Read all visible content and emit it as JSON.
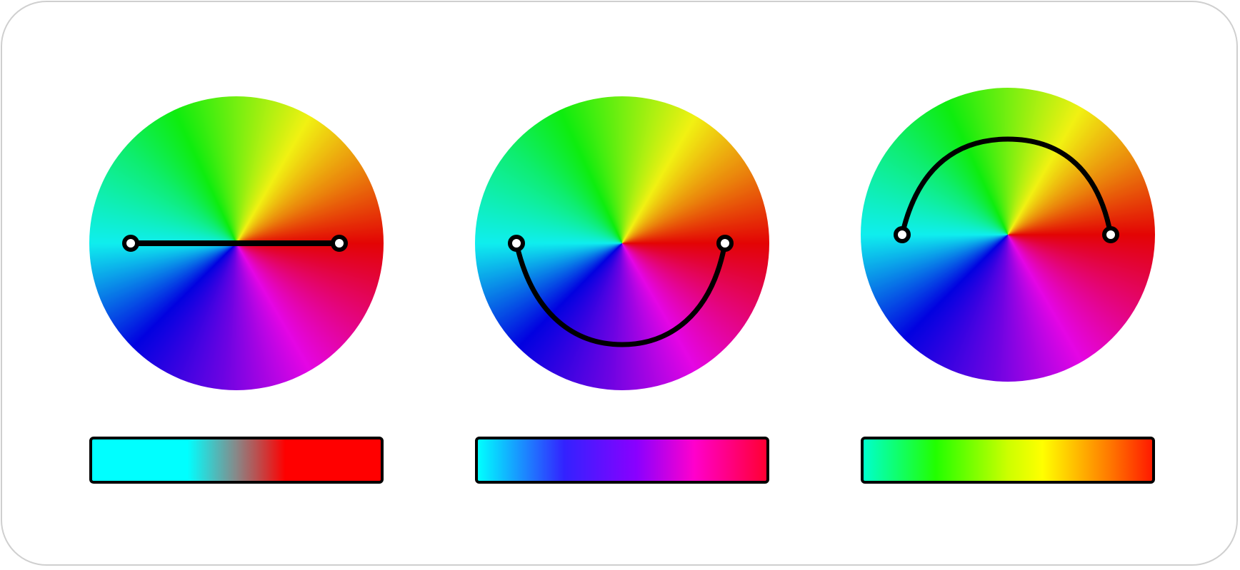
{
  "colors": {
    "path_stroke": "#000000",
    "handle_fill": "#ffffff",
    "frame_border": "#cfcfcf"
  },
  "panels": [
    {
      "path": "straight-line",
      "ramp": [
        "#00ffff",
        "#888888",
        "#ff0000"
      ]
    },
    {
      "path": "arc-through-magenta",
      "ramp": [
        "#00ffff",
        "#3322ff",
        "#8a00ff",
        "#ff00cc",
        "#ff0033"
      ]
    },
    {
      "path": "arc-through-yellow-green",
      "ramp": [
        "#00ffcc",
        "#22ff00",
        "#ccff00",
        "#ffff00",
        "#ff7a00",
        "#ff1a00"
      ]
    }
  ]
}
